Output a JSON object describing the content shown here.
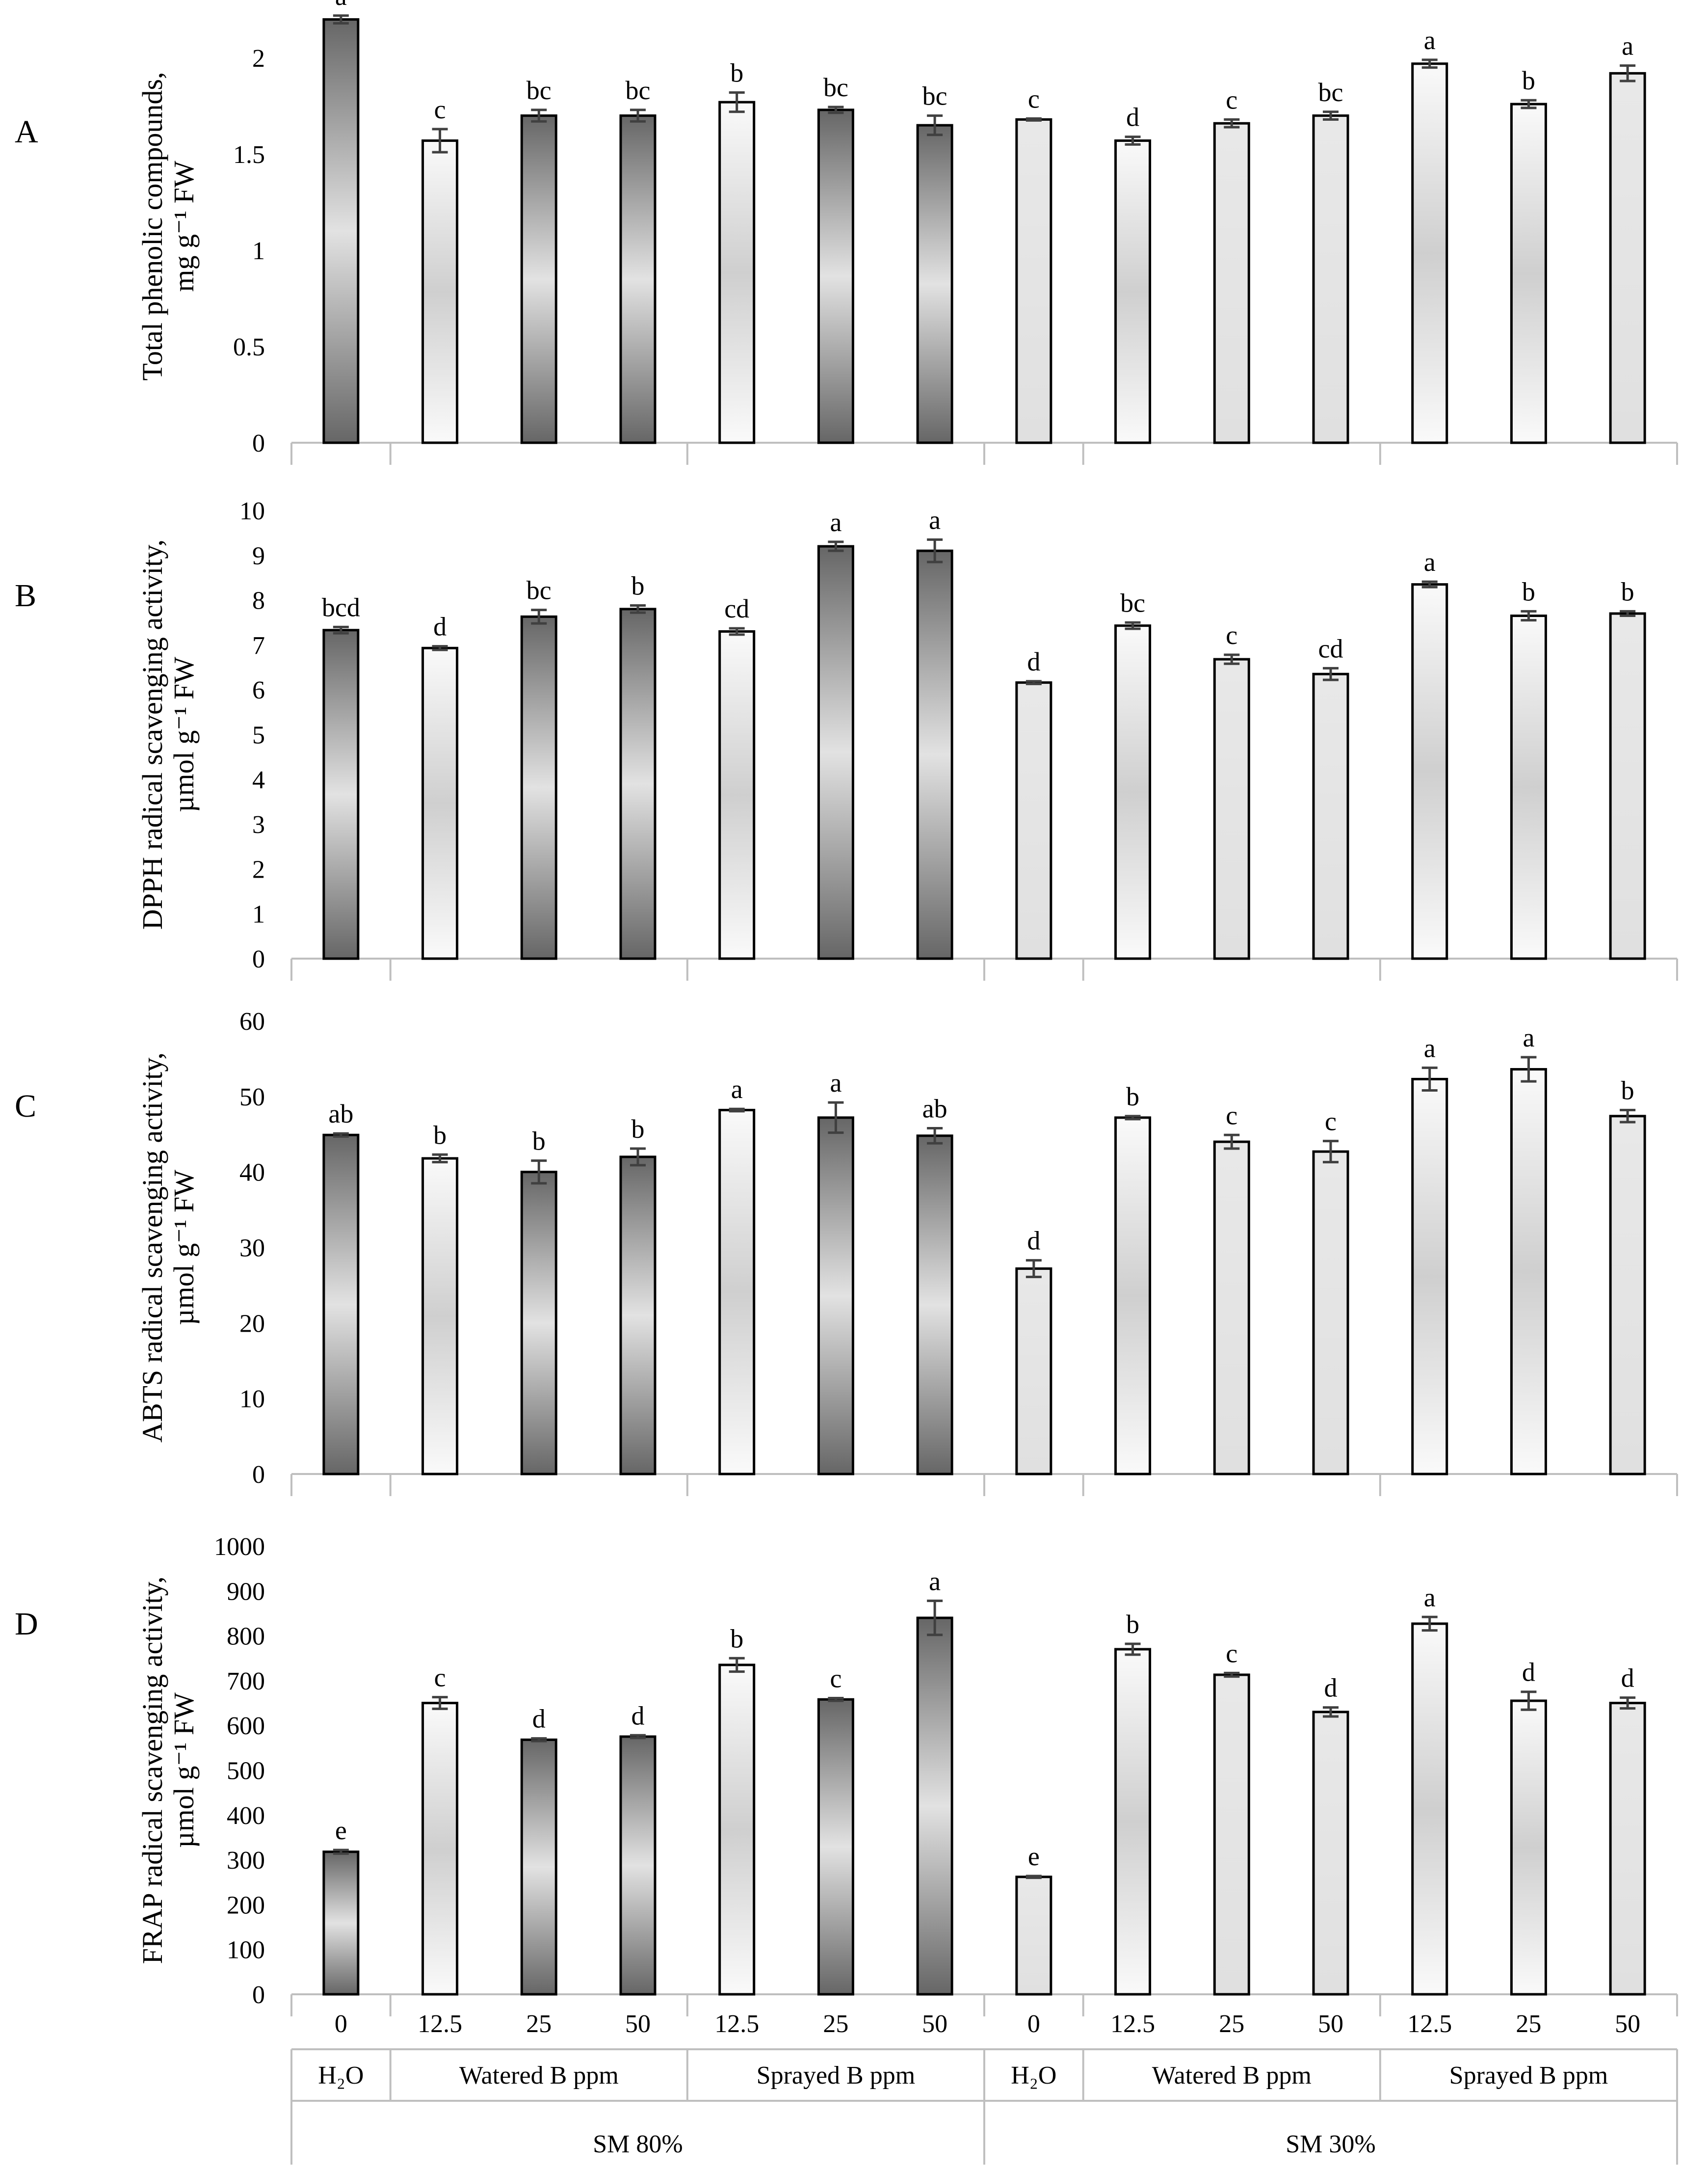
{
  "figure": {
    "shared_axis": {
      "treatments": [
        {
          "dose": "0",
          "group": "H₂O",
          "moisture": "SM 80%"
        },
        {
          "dose": "12.5",
          "group": "Watered B ppm",
          "moisture": "SM 80%"
        },
        {
          "dose": "25",
          "group": "Watered B ppm",
          "moisture": "SM 80%"
        },
        {
          "dose": "50",
          "group": "Watered B ppm",
          "moisture": "SM 80%"
        },
        {
          "dose": "12.5",
          "group": "Sprayed B ppm",
          "moisture": "SM 80%"
        },
        {
          "dose": "25",
          "group": "Sprayed B ppm",
          "moisture": "SM 80%"
        },
        {
          "dose": "50",
          "group": "Sprayed B ppm",
          "moisture": "SM 80%"
        },
        {
          "dose": "0",
          "group": "H₂O",
          "moisture": "SM 30%"
        },
        {
          "dose": "12.5",
          "group": "Watered B ppm",
          "moisture": "SM 30%"
        },
        {
          "dose": "25",
          "group": "Watered B ppm",
          "moisture": "SM 30%"
        },
        {
          "dose": "50",
          "group": "Watered B ppm",
          "moisture": "SM 30%"
        },
        {
          "dose": "12.5",
          "group": "Sprayed B ppm",
          "moisture": "SM 30%"
        },
        {
          "dose": "25",
          "group": "Sprayed B ppm",
          "moisture": "SM 30%"
        },
        {
          "dose": "50",
          "group": "Sprayed B ppm",
          "moisture": "SM 30%"
        }
      ],
      "groups": [
        "H₂O",
        "Watered B ppm",
        "Sprayed B ppm",
        "H₂O",
        "Watered B ppm",
        "Sprayed B ppm"
      ],
      "moistures": [
        "SM 80%",
        "SM 30%"
      ]
    },
    "colors": {
      "dark_start": "#666666",
      "dark_mid": "#d9d9d9",
      "light_start": "#f7f7f7",
      "light_mid": "#d0d0d0",
      "plain": "#e6e6e6",
      "error": "#404040"
    }
  },
  "chart_data": [
    {
      "type": "bar",
      "panel": "A",
      "ylabel_lines": [
        "Total phenolic compounds,",
        "mg g⁻¹ FW"
      ],
      "ylim": [
        0,
        2.25
      ],
      "yticks": [
        0,
        0.5,
        1,
        1.5,
        2
      ],
      "ytick_labels": [
        "0",
        "0.5",
        "1",
        "1.5",
        "2"
      ],
      "values": [
        2.2,
        1.57,
        1.7,
        1.7,
        1.77,
        1.73,
        1.65,
        1.68,
        1.57,
        1.66,
        1.7,
        1.97,
        1.76,
        1.92
      ],
      "errors": [
        0.02,
        0.06,
        0.03,
        0.03,
        0.05,
        0.015,
        0.05,
        0.005,
        0.02,
        0.02,
        0.02,
        0.02,
        0.02,
        0.04
      ],
      "letters": [
        "a",
        "c",
        "bc",
        "bc",
        "b",
        "bc",
        "bc",
        "c",
        "d",
        "c",
        "bc",
        "a",
        "b",
        "a"
      ]
    },
    {
      "type": "bar",
      "panel": "B",
      "ylabel_lines": [
        "DPPH radical scavenging activity,",
        "µmol g⁻¹ FW"
      ],
      "ylim": [
        0,
        10
      ],
      "yticks": [
        0,
        1,
        2,
        3,
        4,
        5,
        6,
        7,
        8,
        9,
        10
      ],
      "ytick_labels": [
        "0",
        "1",
        "2",
        "3",
        "4",
        "5",
        "6",
        "7",
        "8",
        "9",
        "10"
      ],
      "values": [
        7.33,
        6.93,
        7.63,
        7.8,
        7.3,
        9.2,
        9.1,
        6.16,
        7.43,
        6.68,
        6.35,
        8.35,
        7.65,
        7.7
      ],
      "errors": [
        0.07,
        0.04,
        0.15,
        0.08,
        0.07,
        0.1,
        0.25,
        0.03,
        0.07,
        0.1,
        0.13,
        0.06,
        0.1,
        0.05
      ],
      "letters": [
        "bcd",
        "d",
        "bc",
        "b",
        "cd",
        "a",
        "a",
        "d",
        "bc",
        "c",
        "cd",
        "a",
        "b",
        "b"
      ]
    },
    {
      "type": "bar",
      "panel": "C",
      "ylabel_lines": [
        "ABTS radical scavenging activity,",
        "µmol g⁻¹ FW"
      ],
      "ylim": [
        0,
        60
      ],
      "yticks": [
        0,
        10,
        20,
        30,
        40,
        50,
        60
      ],
      "ytick_labels": [
        "0",
        "10",
        "20",
        "30",
        "40",
        "50",
        "60"
      ],
      "values": [
        44.9,
        41.8,
        40.0,
        42.0,
        48.2,
        47.2,
        44.8,
        27.2,
        47.2,
        44.0,
        42.7,
        52.3,
        53.6,
        47.4
      ],
      "errors": [
        0.2,
        0.5,
        1.5,
        1.1,
        0.15,
        2.0,
        1.0,
        1.1,
        0.2,
        0.9,
        1.4,
        1.5,
        1.6,
        0.8
      ],
      "letters": [
        "ab",
        "b",
        "b",
        "b",
        "a",
        "a",
        "ab",
        "d",
        "b",
        "c",
        "c",
        "a",
        "a",
        "b"
      ]
    },
    {
      "type": "bar",
      "panel": "D",
      "ylabel_lines": [
        "FRAP radical scavenging activity,",
        "µmol g⁻¹ FW"
      ],
      "ylim": [
        0,
        1000
      ],
      "yticks": [
        0,
        100,
        200,
        300,
        400,
        500,
        600,
        700,
        800,
        900,
        1000
      ],
      "ytick_labels": [
        "0",
        "100",
        "200",
        "300",
        "400",
        "500",
        "600",
        "700",
        "800",
        "900",
        "1000"
      ],
      "values": [
        318,
        650,
        568,
        575,
        735,
        658,
        840,
        262,
        770,
        713,
        630,
        827,
        655,
        650
      ],
      "errors": [
        4,
        13,
        3,
        3,
        15,
        3,
        38,
        2,
        12,
        4,
        10,
        15,
        20,
        12
      ],
      "letters": [
        "e",
        "c",
        "d",
        "d",
        "b",
        "c",
        "a",
        "e",
        "b",
        "c",
        "d",
        "a",
        "d",
        "d"
      ]
    }
  ]
}
